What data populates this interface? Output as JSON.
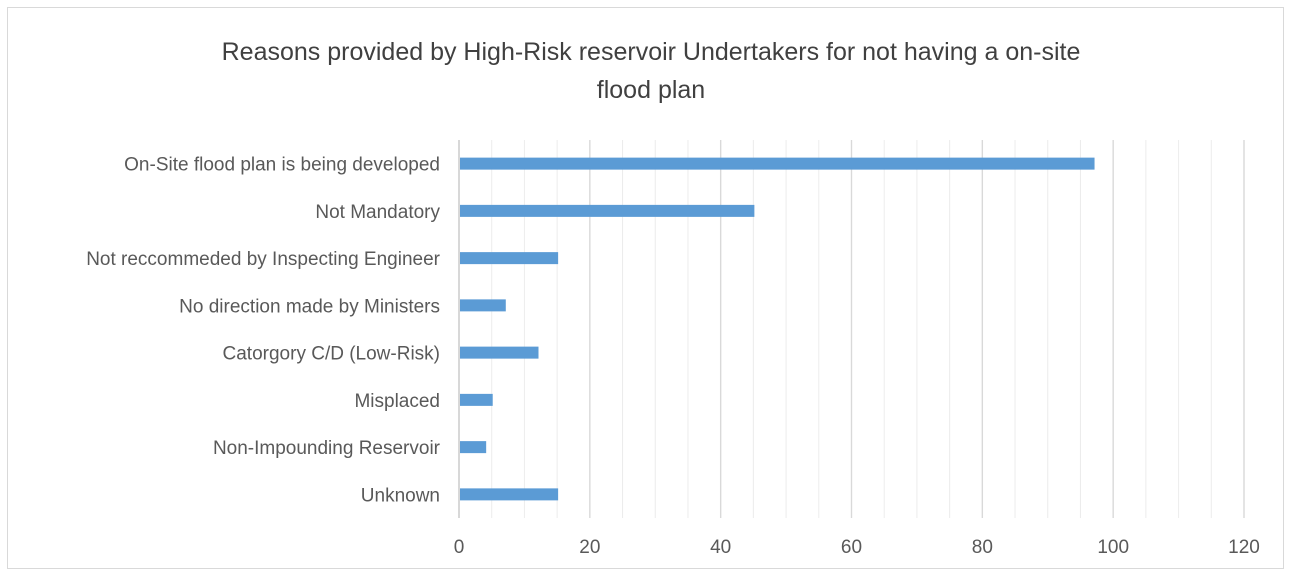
{
  "chart_data": {
    "type": "bar",
    "orientation": "horizontal",
    "title": "Reasons provided by High-Risk reservoir Undertakers for not having a on-site flood plan",
    "title_lines": [
      "Reasons provided by High-Risk reservoir Undertakers for not having a on-site",
      "flood plan"
    ],
    "categories": [
      "On-Site flood plan is being developed",
      "Not Mandatory",
      "Not reccommeded by Inspecting Engineer",
      "No direction made by Ministers",
      "Catorgory C/D (Low-Risk)",
      "Misplaced",
      "Non-Impounding Reservoir",
      "Unknown"
    ],
    "values": [
      97,
      45,
      15,
      7,
      12,
      5,
      4,
      15
    ],
    "xlim": [
      0,
      120
    ],
    "xticks": [
      0,
      20,
      40,
      60,
      80,
      100,
      120
    ],
    "x_minor_step": 5,
    "grid": true,
    "legend": "none",
    "bar_color": "#5b9bd5"
  }
}
